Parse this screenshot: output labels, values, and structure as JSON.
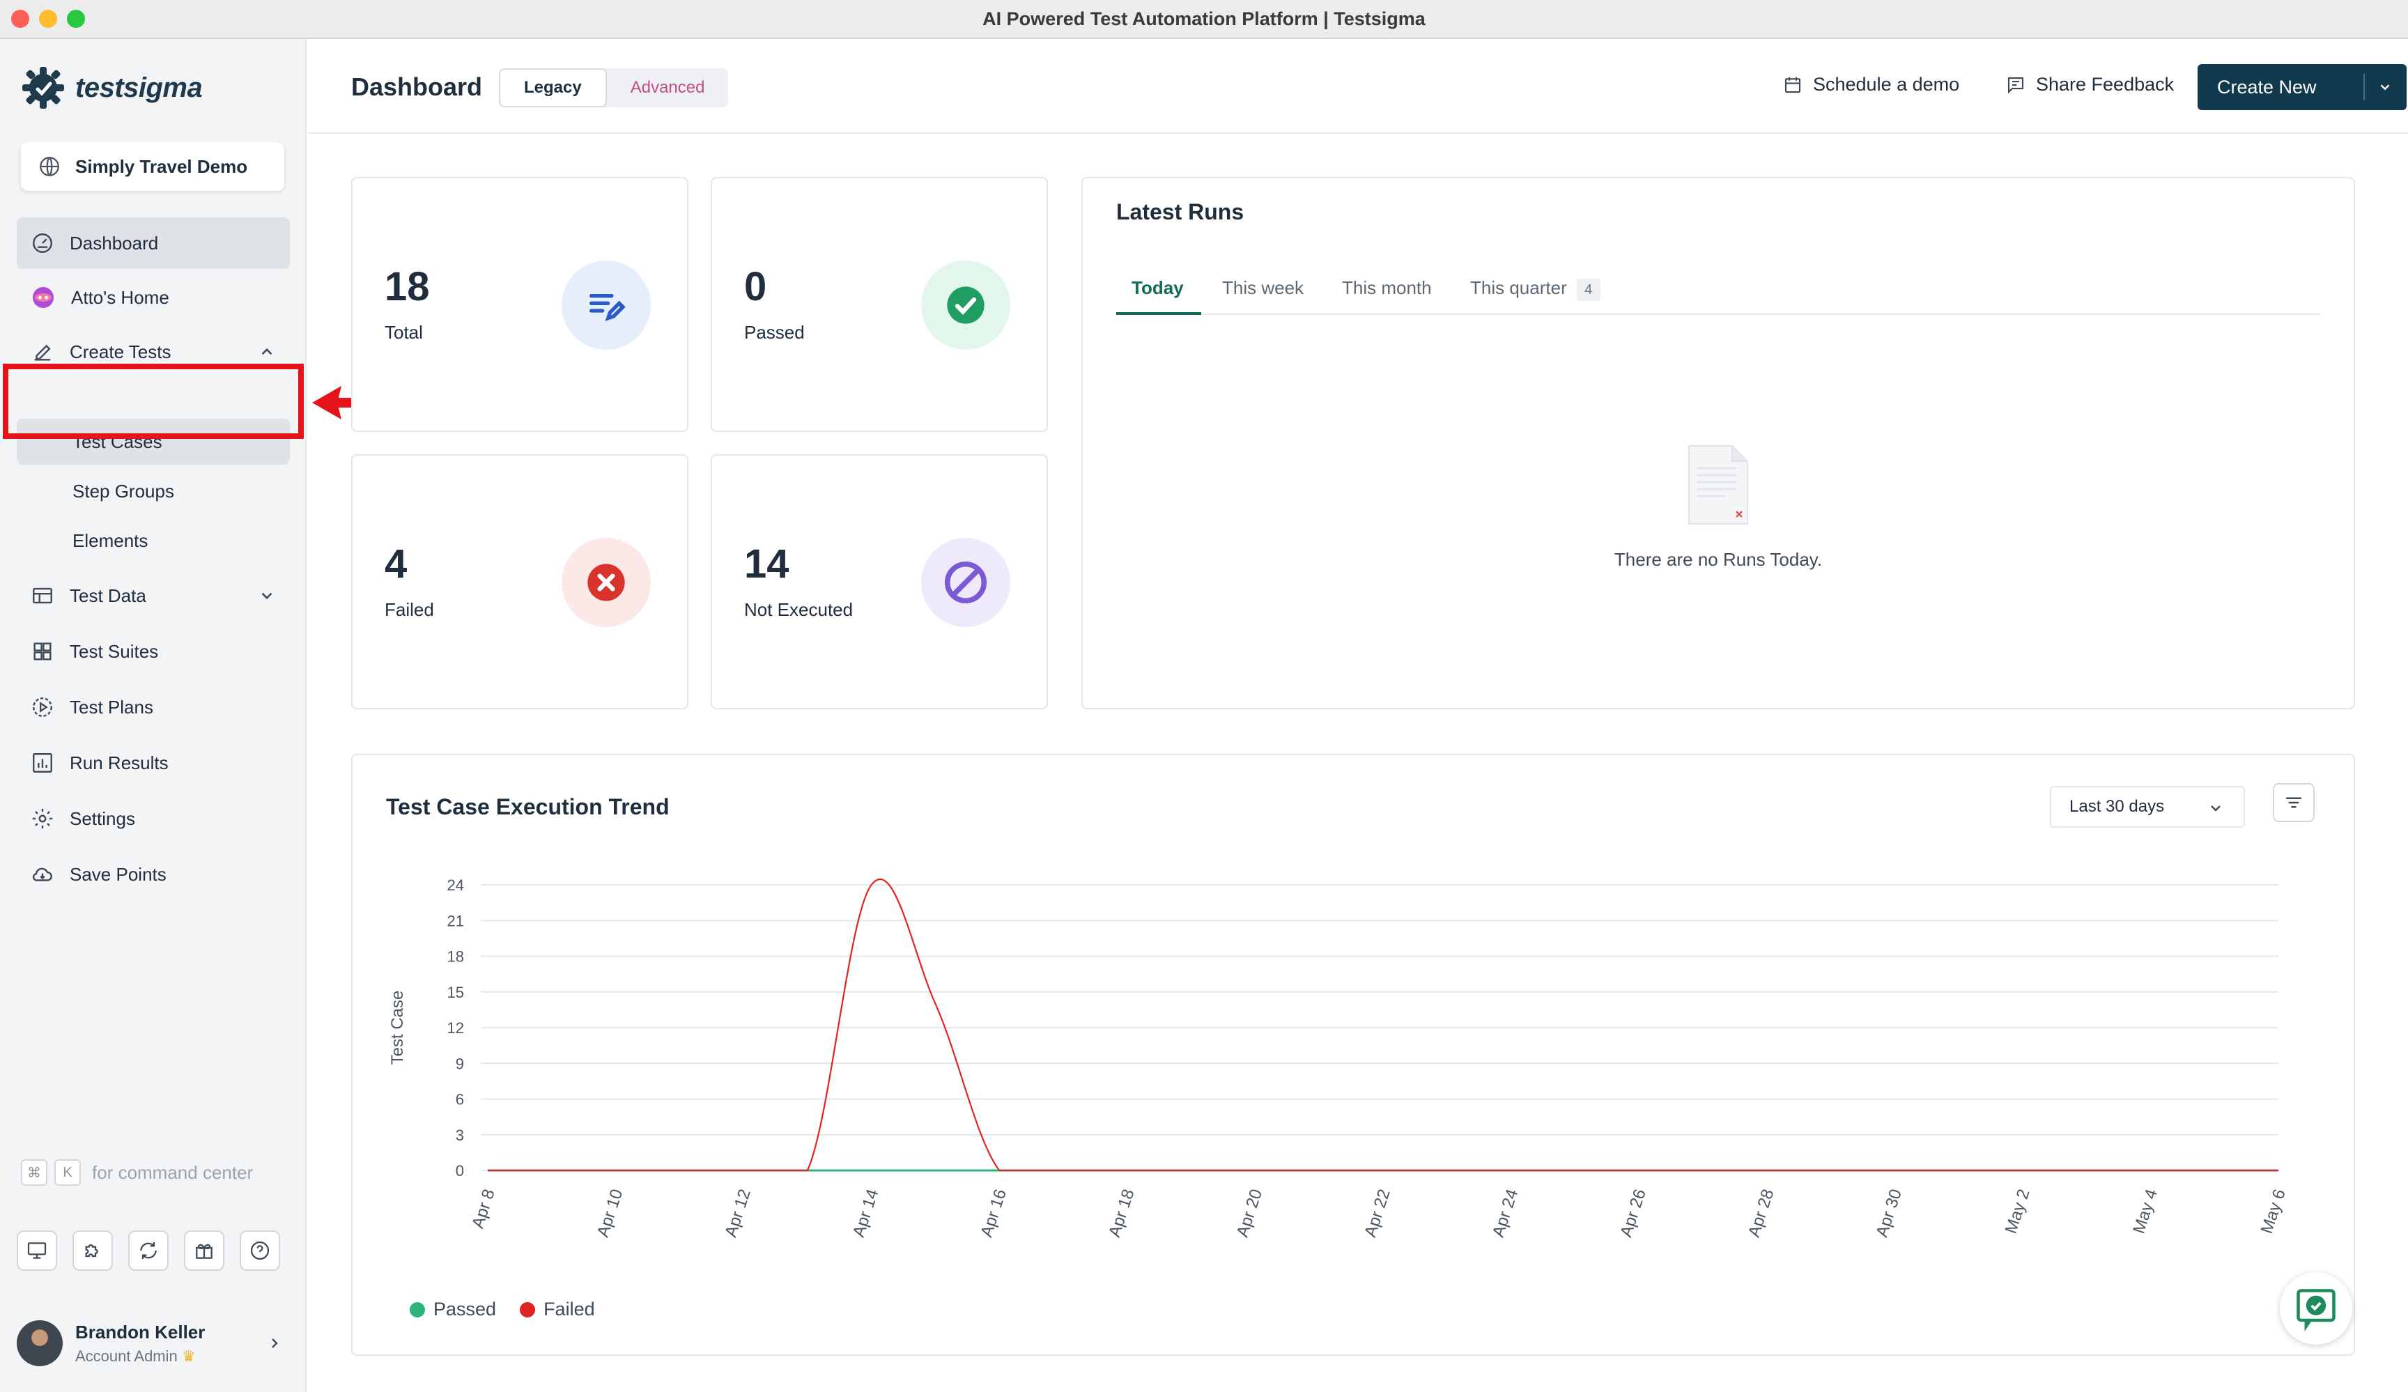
{
  "window": {
    "title": "AI Powered Test Automation Platform | Testsigma"
  },
  "brand": {
    "name": "testsigma",
    "color": "#1f3a4d",
    "accent": "#136a57"
  },
  "project": {
    "name": "Simply Travel Demo"
  },
  "sidebar": {
    "items": [
      {
        "label": "Dashboard",
        "icon": "gauge-icon",
        "active": true
      },
      {
        "label": "Atto's Home",
        "icon": "atto-icon"
      },
      {
        "label": "Create Tests",
        "icon": "pencil-icon",
        "expanded": true
      },
      {
        "label": "Test Data",
        "icon": "table-icon",
        "expanded": false
      },
      {
        "label": "Test Suites",
        "icon": "grid-icon"
      },
      {
        "label": "Test Plans",
        "icon": "play-circle-icon"
      },
      {
        "label": "Run Results",
        "icon": "bar-chart-icon"
      },
      {
        "label": "Settings",
        "icon": "gear-icon"
      },
      {
        "label": "Save Points",
        "icon": "cloud-icon"
      }
    ],
    "subitems": [
      {
        "label": "Test Cases",
        "active": true
      },
      {
        "label": "Step Groups"
      },
      {
        "label": "Elements"
      }
    ],
    "command": {
      "key1": "⌘",
      "key2": "K",
      "label": "for command center"
    },
    "tools": [
      "remote-desktop-icon",
      "puzzle-icon",
      "sync-icon",
      "gift-icon",
      "help-icon"
    ],
    "user": {
      "name": "Brandon Keller",
      "role": "Account Admin"
    }
  },
  "header": {
    "title": "Dashboard",
    "toggle": {
      "legacy": "Legacy",
      "advanced": "Advanced"
    },
    "schedule": "Schedule a demo",
    "feedback": "Share Feedback",
    "create": "Create New"
  },
  "stats": {
    "total": {
      "value": "18",
      "label": "Total"
    },
    "passed": {
      "value": "0",
      "label": "Passed"
    },
    "failed": {
      "value": "4",
      "label": "Failed"
    },
    "not_executed": {
      "value": "14",
      "label": "Not Executed"
    }
  },
  "runs": {
    "title": "Latest Runs",
    "tabs": [
      {
        "label": "Today"
      },
      {
        "label": "This week"
      },
      {
        "label": "This month"
      },
      {
        "label": "This quarter",
        "badge": "4"
      }
    ],
    "empty": "There are no Runs Today."
  },
  "trend": {
    "title": "Test Case Execution Trend",
    "range": "Last 30 days"
  },
  "chart_data": {
    "type": "line",
    "title": "Test Case Execution Trend",
    "ylabel": "Test Case",
    "xlabel": "",
    "ylim": [
      0,
      24
    ],
    "yticks": [
      0,
      3,
      6,
      9,
      12,
      15,
      18,
      21,
      24
    ],
    "x": [
      "Apr 8",
      "Apr 9",
      "Apr 10",
      "Apr 11",
      "Apr 12",
      "Apr 13",
      "Apr 14",
      "Apr 15",
      "Apr 16",
      "Apr 17",
      "Apr 18",
      "Apr 19",
      "Apr 20",
      "Apr 21",
      "Apr 22",
      "Apr 23",
      "Apr 24",
      "Apr 25",
      "Apr 26",
      "Apr 27",
      "Apr 28",
      "Apr 29",
      "Apr 30",
      "May 1",
      "May 2",
      "May 3",
      "May 4",
      "May 5",
      "May 6"
    ],
    "xticks": [
      "Apr 8",
      "Apr 10",
      "Apr 12",
      "Apr 14",
      "Apr 16",
      "Apr 18",
      "Apr 20",
      "Apr 22",
      "Apr 24",
      "Apr 26",
      "Apr 28",
      "Apr 30",
      "May 2",
      "May 4",
      "May 6"
    ],
    "series": [
      {
        "name": "Passed",
        "color": "#2bb37a",
        "values": [
          0,
          0,
          0,
          0,
          0,
          0,
          0,
          0,
          0,
          0,
          0,
          0,
          0,
          0,
          0,
          0,
          0,
          0,
          0,
          0,
          0,
          0,
          0,
          0,
          0,
          0,
          0,
          0,
          0
        ]
      },
      {
        "name": "Failed",
        "color": "#e02424",
        "values": [
          0,
          0,
          0,
          0,
          0,
          0,
          24,
          14,
          0,
          0,
          0,
          0,
          0,
          0,
          0,
          0,
          0,
          0,
          0,
          0,
          0,
          0,
          0,
          0,
          0,
          0,
          0,
          0,
          0
        ]
      }
    ],
    "legend": "bottom-left",
    "grid": true
  }
}
